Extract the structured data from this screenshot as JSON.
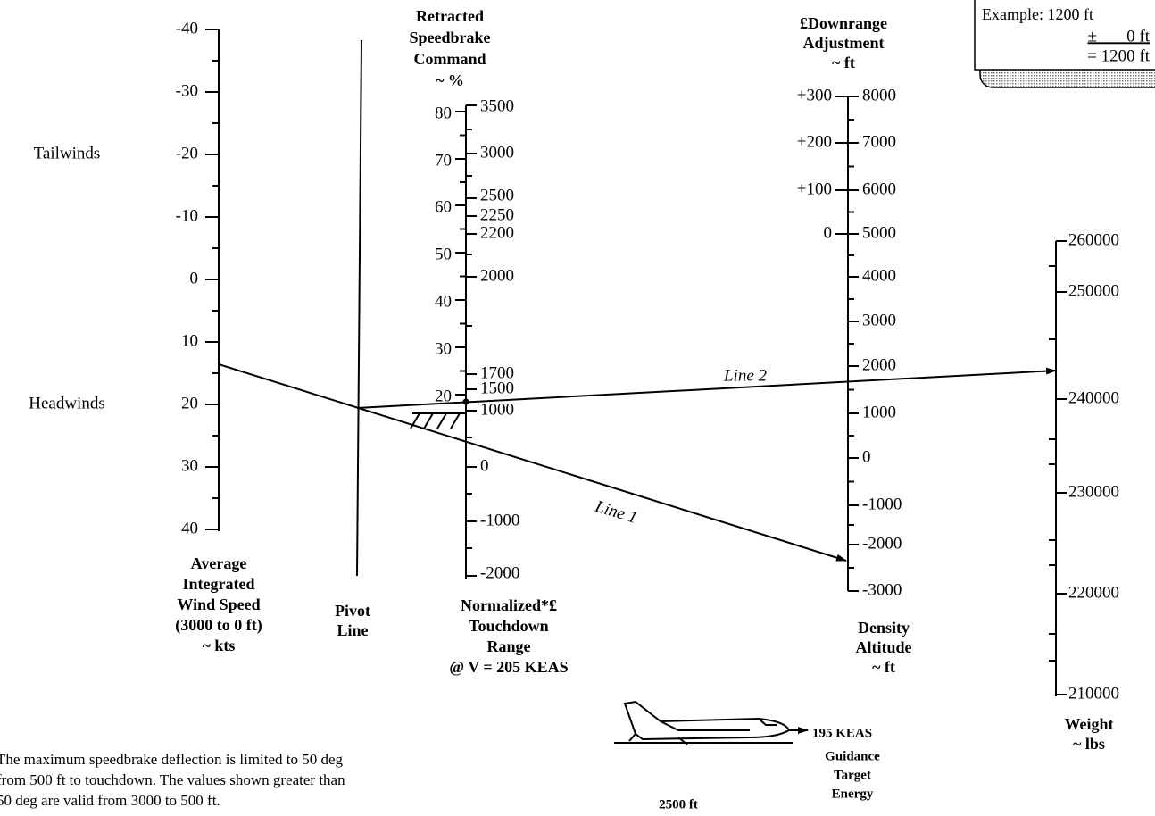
{
  "example": [
    "Example:  1200 ft",
    "±       0 ft",
    "= 1200 ft"
  ],
  "wind_axis": {
    "side_labels": [
      "Tailwinds",
      "Headwinds"
    ],
    "ticks": [
      "-40",
      "-30",
      "-20",
      "-10",
      "0",
      "10",
      "20",
      "30",
      "40"
    ],
    "title": [
      "Average",
      "Integrated",
      "Wind Speed",
      "(3000 to 0 ft)",
      "~ kts"
    ]
  },
  "pivot_line": {
    "title": [
      "Pivot",
      "Line"
    ]
  },
  "speedbrake_axis": {
    "title": [
      "Retracted",
      "Speedbrake",
      "Command",
      "~ %"
    ],
    "ticks": [
      "80",
      "70",
      "60",
      "50",
      "40",
      "30",
      "20"
    ]
  },
  "touchdown_range_axis": {
    "title": [
      "Normalized*£",
      "Touchdown",
      "Range",
      "@ V = 205 KEAS"
    ],
    "ticks": [
      "3500",
      "3000",
      "2500",
      "2250",
      "2200",
      "2000",
      "1700",
      "1500",
      "1000",
      "0",
      "-1000",
      "-2000"
    ]
  },
  "downrange_adjustment_axis": {
    "title": [
      "£Downrange",
      "Adjustment",
      "~ ft"
    ],
    "ticks": [
      "+300",
      "+200",
      "+100",
      "0"
    ]
  },
  "density_altitude_axis": {
    "title": [
      "Density",
      "Altitude",
      "~ ft"
    ],
    "ticks": [
      "8000",
      "7000",
      "6000",
      "5000",
      "4000",
      "3000",
      "2000",
      "1000",
      "0",
      "-1000",
      "-2000",
      "-3000"
    ]
  },
  "weight_axis": {
    "title": [
      "Weight",
      "~ lbs"
    ],
    "ticks": [
      "260000",
      "250000",
      "240000",
      "230000",
      "220000",
      "210000"
    ]
  },
  "lines": [
    "Line 1",
    "Line 2"
  ],
  "footnote": [
    "The maximum speedbrake deflection is limited to 50 deg",
    "from 500 ft to touchdown.  The values shown greater than",
    "50 deg are valid from 3000 to 500 ft."
  ],
  "shuttle": {
    "speed": "195 KEAS",
    "caption": [
      "Guidance",
      "Target",
      "Energy"
    ],
    "altitude": "2500 ft"
  }
}
